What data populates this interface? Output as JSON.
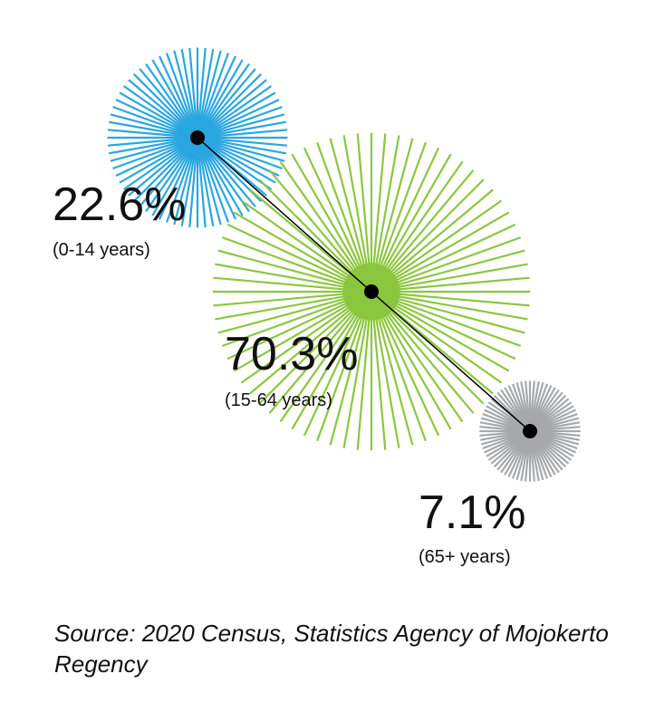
{
  "chart_data": {
    "type": "bubble",
    "title": "",
    "series": [
      {
        "label": "(0-14 years)",
        "value": 22.6,
        "value_label": "22.6%",
        "color": "#29a6e0"
      },
      {
        "label": "(15-64 years)",
        "value": 70.3,
        "value_label": "70.3%",
        "color": "#8cc63f"
      },
      {
        "label": "(65+ years)",
        "value": 7.1,
        "value_label": "7.1%",
        "color": "#a7a8ac"
      }
    ],
    "connector": "line through bubble centres",
    "legend": "none"
  },
  "footer": {
    "source": "Source: 2020 Census, Statistics Agency of Mojokerto Regency"
  }
}
